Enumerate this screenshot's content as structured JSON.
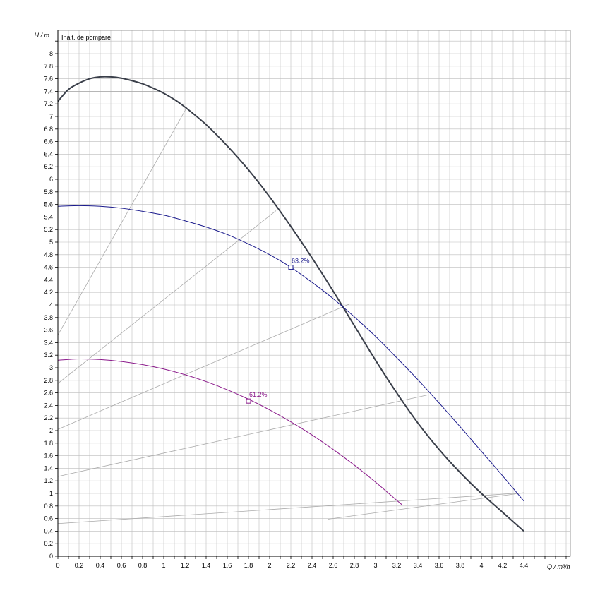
{
  "chart_data": {
    "type": "line",
    "title": "Inalt. de pompare",
    "xlabel": "Q / m³/h",
    "ylabel": "H / m",
    "xlim": [
      0,
      4.8
    ],
    "ylim": [
      0,
      8.3
    ],
    "x_ticks": [
      "0",
      "0.2",
      "0.4",
      "0.6",
      "0.8",
      "1",
      "1.2",
      "1.4",
      "1.6",
      "1.8",
      "2",
      "2.2",
      "2.4",
      "2.6",
      "2.8",
      "3",
      "3.2",
      "3.4",
      "3.6",
      "3.8",
      "4",
      "4.2",
      "4.4"
    ],
    "y_ticks": [
      "0",
      "0.2",
      "0.4",
      "0.6",
      "0.8",
      "1",
      "1.2",
      "1.4",
      "1.6",
      "1.8",
      "2",
      "2.2",
      "2.4",
      "2.6",
      "2.8",
      "3",
      "3.2",
      "3.4",
      "3.6",
      "3.8",
      "4",
      "4.2",
      "4.4",
      "4.6",
      "4.8",
      "5",
      "5.2",
      "5.4",
      "5.6",
      "5.8",
      "6",
      "6.2",
      "6.4",
      "6.6",
      "6.8",
      "7",
      "7.2",
      "7.4",
      "7.6",
      "7.8",
      "8"
    ],
    "grid": true,
    "series": [
      {
        "color": "#3a3f4a",
        "width": 2,
        "x": [
          0,
          0.1,
          0.2,
          0.3,
          0.4,
          0.5,
          0.6,
          0.7,
          0.8,
          0.9,
          1.0,
          1.1,
          1.2,
          1.4,
          1.6,
          1.8,
          2.0,
          2.2,
          2.4,
          2.6,
          2.8,
          3.0,
          3.2,
          3.4,
          3.6,
          3.8,
          4.0,
          4.2,
          4.4
        ],
        "y": [
          7.24,
          7.43,
          7.53,
          7.6,
          7.63,
          7.63,
          7.61,
          7.57,
          7.52,
          7.45,
          7.37,
          7.27,
          7.15,
          6.87,
          6.53,
          6.15,
          5.72,
          5.25,
          4.75,
          4.22,
          3.67,
          3.12,
          2.6,
          2.12,
          1.7,
          1.33,
          1.0,
          0.7,
          0.4
        ]
      },
      {
        "color": "#1a1a8c",
        "width": 1,
        "x": [
          0,
          0.2,
          0.4,
          0.6,
          0.8,
          1.0,
          1.2,
          1.4,
          1.6,
          1.8,
          2.0,
          2.2,
          2.4,
          2.6,
          2.8,
          3.0,
          3.2,
          3.4,
          3.6,
          3.8,
          4.0,
          4.2,
          4.4
        ],
        "y": [
          5.57,
          5.58,
          5.57,
          5.54,
          5.49,
          5.43,
          5.34,
          5.24,
          5.12,
          4.97,
          4.8,
          4.6,
          4.36,
          4.1,
          3.81,
          3.5,
          3.16,
          2.81,
          2.44,
          2.06,
          1.67,
          1.28,
          0.88
        ]
      },
      {
        "color": "#8b1a8b",
        "width": 1,
        "x": [
          0,
          0.2,
          0.4,
          0.6,
          0.8,
          1.0,
          1.2,
          1.4,
          1.6,
          1.8,
          2.0,
          2.2,
          2.4,
          2.6,
          2.8,
          3.0,
          3.2,
          3.25
        ],
        "y": [
          3.12,
          3.14,
          3.13,
          3.1,
          3.05,
          2.98,
          2.89,
          2.78,
          2.65,
          2.5,
          2.33,
          2.14,
          1.93,
          1.7,
          1.45,
          1.18,
          0.89,
          0.82
        ]
      }
    ],
    "efficiency_lines": [
      {
        "x": [
          0,
          1.22
        ],
        "y": [
          3.52,
          7.15
        ]
      },
      {
        "x": [
          0,
          2.06
        ],
        "y": [
          2.75,
          5.5
        ]
      },
      {
        "x": [
          0,
          2.76
        ],
        "y": [
          2.02,
          4.02
        ]
      },
      {
        "x": [
          0,
          3.5
        ],
        "y": [
          1.27,
          2.57
        ]
      },
      {
        "x": [
          0,
          4.4
        ],
        "y": [
          0.52,
          1.01
        ]
      },
      {
        "x": [
          2.55,
          4.4
        ],
        "y": [
          0.59,
          1.01
        ]
      },
      {
        "x": [
          0,
          0.95
        ],
        "y": [
          7.4,
          7.4
        ]
      }
    ],
    "points": [
      {
        "x": 2.2,
        "y": 4.6,
        "label": "63.2%",
        "color": "#1a1a8c"
      },
      {
        "x": 1.8,
        "y": 2.47,
        "label": "61.2%",
        "color": "#8b1a8b"
      }
    ]
  }
}
